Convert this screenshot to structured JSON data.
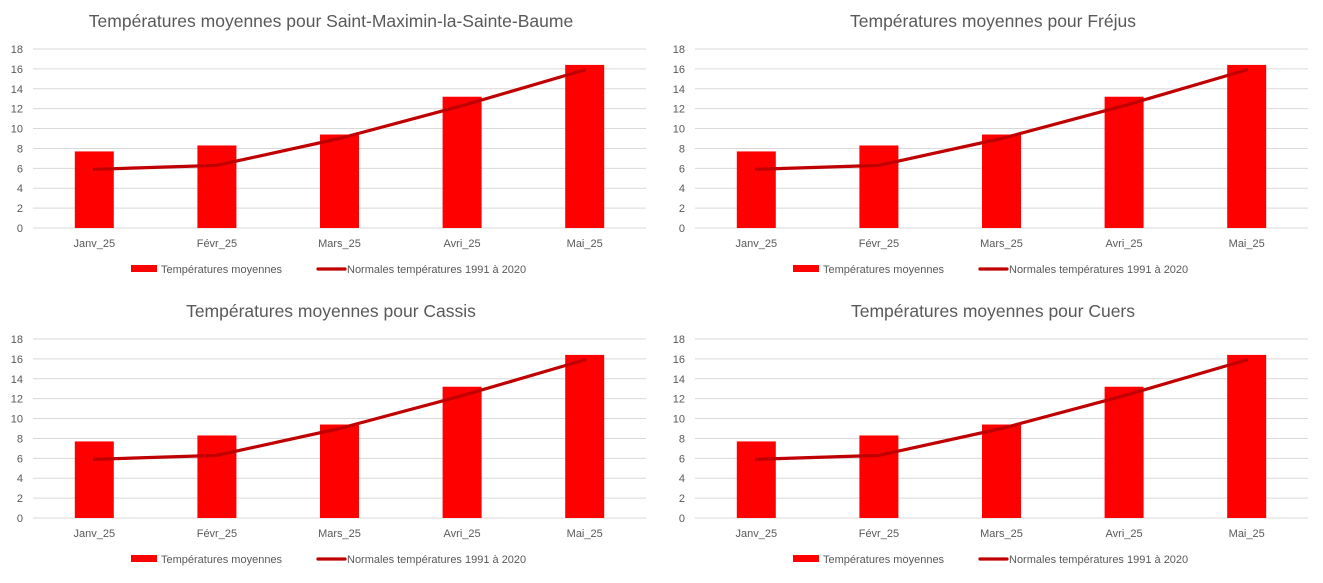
{
  "chart_data": [
    {
      "type": "bar",
      "title": "Températures moyennes pour Saint-Maximin-la-Sainte-Baume",
      "categories": [
        "Janv_25",
        "Févr_25",
        "Mars_25",
        "Avri_25",
        "Mai_25"
      ],
      "series": [
        {
          "name": "Températures moyennes",
          "type": "bar",
          "color": "#ff0000",
          "values": [
            7.7,
            8.3,
            9.4,
            13.2,
            16.4
          ]
        },
        {
          "name": "Normales températures 1991 à 2020",
          "type": "line",
          "color": "#c00000",
          "values": [
            5.9,
            6.3,
            9.0,
            12.3,
            15.9
          ]
        }
      ],
      "ylim": [
        0,
        18
      ],
      "yticks": [
        "0",
        "2",
        "4",
        "6",
        "8",
        "10",
        "12",
        "14",
        "16",
        "18"
      ],
      "grid": true,
      "legend": "bottom"
    },
    {
      "type": "bar",
      "title": "Températures moyennes pour Fréjus",
      "categories": [
        "Janv_25",
        "Févr_25",
        "Mars_25",
        "Avri_25",
        "Mai_25"
      ],
      "series": [
        {
          "name": "Températures moyennes",
          "type": "bar",
          "color": "#ff0000",
          "values": [
            7.7,
            8.3,
            9.4,
            13.2,
            16.4
          ]
        },
        {
          "name": "Normales températures 1991 à 2020",
          "type": "line",
          "color": "#c00000",
          "values": [
            5.9,
            6.3,
            9.0,
            12.3,
            15.9
          ]
        }
      ],
      "ylim": [
        0,
        18
      ],
      "yticks": [
        "0",
        "2",
        "4",
        "6",
        "8",
        "10",
        "12",
        "14",
        "16",
        "18"
      ],
      "grid": true,
      "legend": "bottom"
    },
    {
      "type": "bar",
      "title": "Températures moyennes pour Cassis",
      "categories": [
        "Janv_25",
        "Févr_25",
        "Mars_25",
        "Avri_25",
        "Mai_25"
      ],
      "series": [
        {
          "name": "Températures moyennes",
          "type": "bar",
          "color": "#ff0000",
          "values": [
            7.7,
            8.3,
            9.4,
            13.2,
            16.4
          ]
        },
        {
          "name": "Normales températures 1991 à 2020",
          "type": "line",
          "color": "#c00000",
          "values": [
            5.9,
            6.3,
            9.0,
            12.3,
            15.9
          ]
        }
      ],
      "ylim": [
        0,
        18
      ],
      "yticks": [
        "0",
        "2",
        "4",
        "6",
        "8",
        "10",
        "12",
        "14",
        "16",
        "18"
      ],
      "grid": true,
      "legend": "bottom"
    },
    {
      "type": "bar",
      "title": "Températures moyennes pour Cuers",
      "categories": [
        "Janv_25",
        "Févr_25",
        "Mars_25",
        "Avri_25",
        "Mai_25"
      ],
      "series": [
        {
          "name": "Températures moyennes",
          "type": "bar",
          "color": "#ff0000",
          "values": [
            7.7,
            8.3,
            9.4,
            13.2,
            16.4
          ]
        },
        {
          "name": "Normales températures 1991 à 2020",
          "type": "line",
          "color": "#c00000",
          "values": [
            5.9,
            6.3,
            9.0,
            12.3,
            15.9
          ]
        }
      ],
      "ylim": [
        0,
        18
      ],
      "yticks": [
        "0",
        "2",
        "4",
        "6",
        "8",
        "10",
        "12",
        "14",
        "16",
        "18"
      ],
      "grid": true,
      "legend": "bottom"
    }
  ]
}
